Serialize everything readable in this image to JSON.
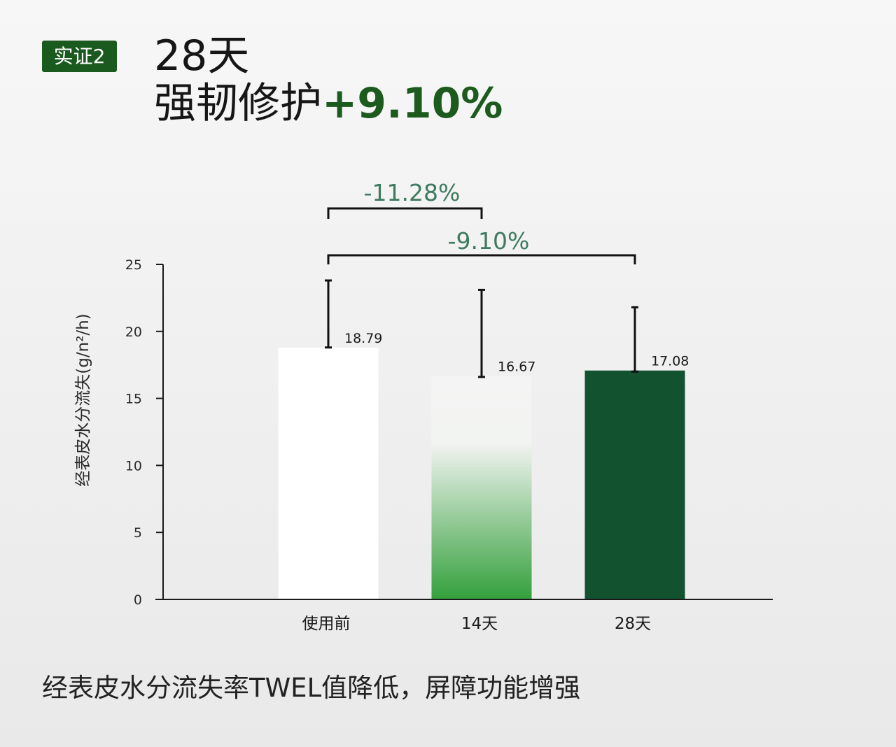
{
  "badge": "实证2",
  "headline": {
    "line1": "28天",
    "line2_prefix": "强韧修护",
    "line2_accent": "+9.10%"
  },
  "colors": {
    "accent": "#1d5a1e",
    "bar_before": "#ffffff",
    "bar_14d_top": "#f4f4f4",
    "bar_14d_bottom": "#34a03c",
    "bar_28d": "#12522e",
    "compare_text": "#3e7a5e"
  },
  "caption": "经表皮水分流失率TWEL值降低，屏障功能增强",
  "chart_data": {
    "type": "bar",
    "categories": [
      "使用前",
      "14天",
      "28天"
    ],
    "values": [
      18.79,
      16.67,
      17.08
    ],
    "value_labels": [
      "18.79",
      "16.67",
      "17.08"
    ],
    "error_upper": [
      23.8,
      23.1,
      21.8
    ],
    "error_lower": [
      18.8,
      16.6,
      17.0
    ],
    "ylabel": "经表皮水分流失(g/n²/h)",
    "ylim": [
      0,
      25
    ],
    "yticks": [
      0,
      5,
      10,
      15,
      20,
      25
    ],
    "grid": false,
    "comparisons": [
      {
        "from": 0,
        "to": 1,
        "label": "-11.28%"
      },
      {
        "from": 0,
        "to": 2,
        "label": "-9.10%"
      }
    ]
  }
}
